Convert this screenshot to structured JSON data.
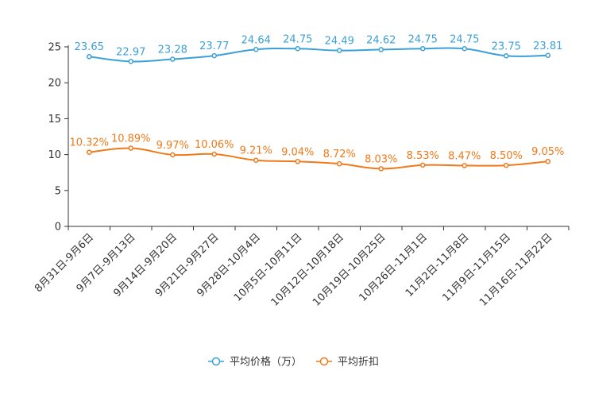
{
  "chart_data": {
    "type": "line",
    "categories": [
      "8月31日-9月6日",
      "9月7日-9月13日",
      "9月14日-9月20日",
      "9月21日-9月27日",
      "9月28日-10月4日",
      "10月5日-10月11日",
      "10月12日-10月18日",
      "10月19日-10月25日",
      "10月26日-11月1日",
      "11月2日-11月8日",
      "11月9日-11月15日",
      "11月16日-11月22日"
    ],
    "ylim": [
      0,
      25
    ],
    "yticks": [
      "0",
      "5",
      "10",
      "15",
      "20",
      "25"
    ],
    "series": [
      {
        "name": "平均价格（万）",
        "color": "#3ba0d8",
        "values": [
          23.65,
          22.97,
          23.28,
          23.77,
          24.64,
          24.75,
          24.49,
          24.62,
          24.75,
          24.75,
          23.75,
          23.81
        ],
        "labels": [
          "23.65",
          "22.97",
          "23.28",
          "23.77",
          "24.64",
          "24.75",
          "24.49",
          "24.62",
          "24.75",
          "24.75",
          "23.75",
          "23.81"
        ]
      },
      {
        "name": "平均折扣",
        "color": "#f07a19",
        "values": [
          10.32,
          10.89,
          9.97,
          10.06,
          9.21,
          9.04,
          8.72,
          8.03,
          8.53,
          8.47,
          8.5,
          9.05
        ],
        "labels": [
          "10.32%",
          "10.89%",
          "9.97%",
          "10.06%",
          "9.21%",
          "9.04%",
          "8.72%",
          "8.03%",
          "8.53%",
          "8.47%",
          "8.50%",
          "9.05%"
        ]
      }
    ],
    "legend_position": "bottom-center"
  }
}
